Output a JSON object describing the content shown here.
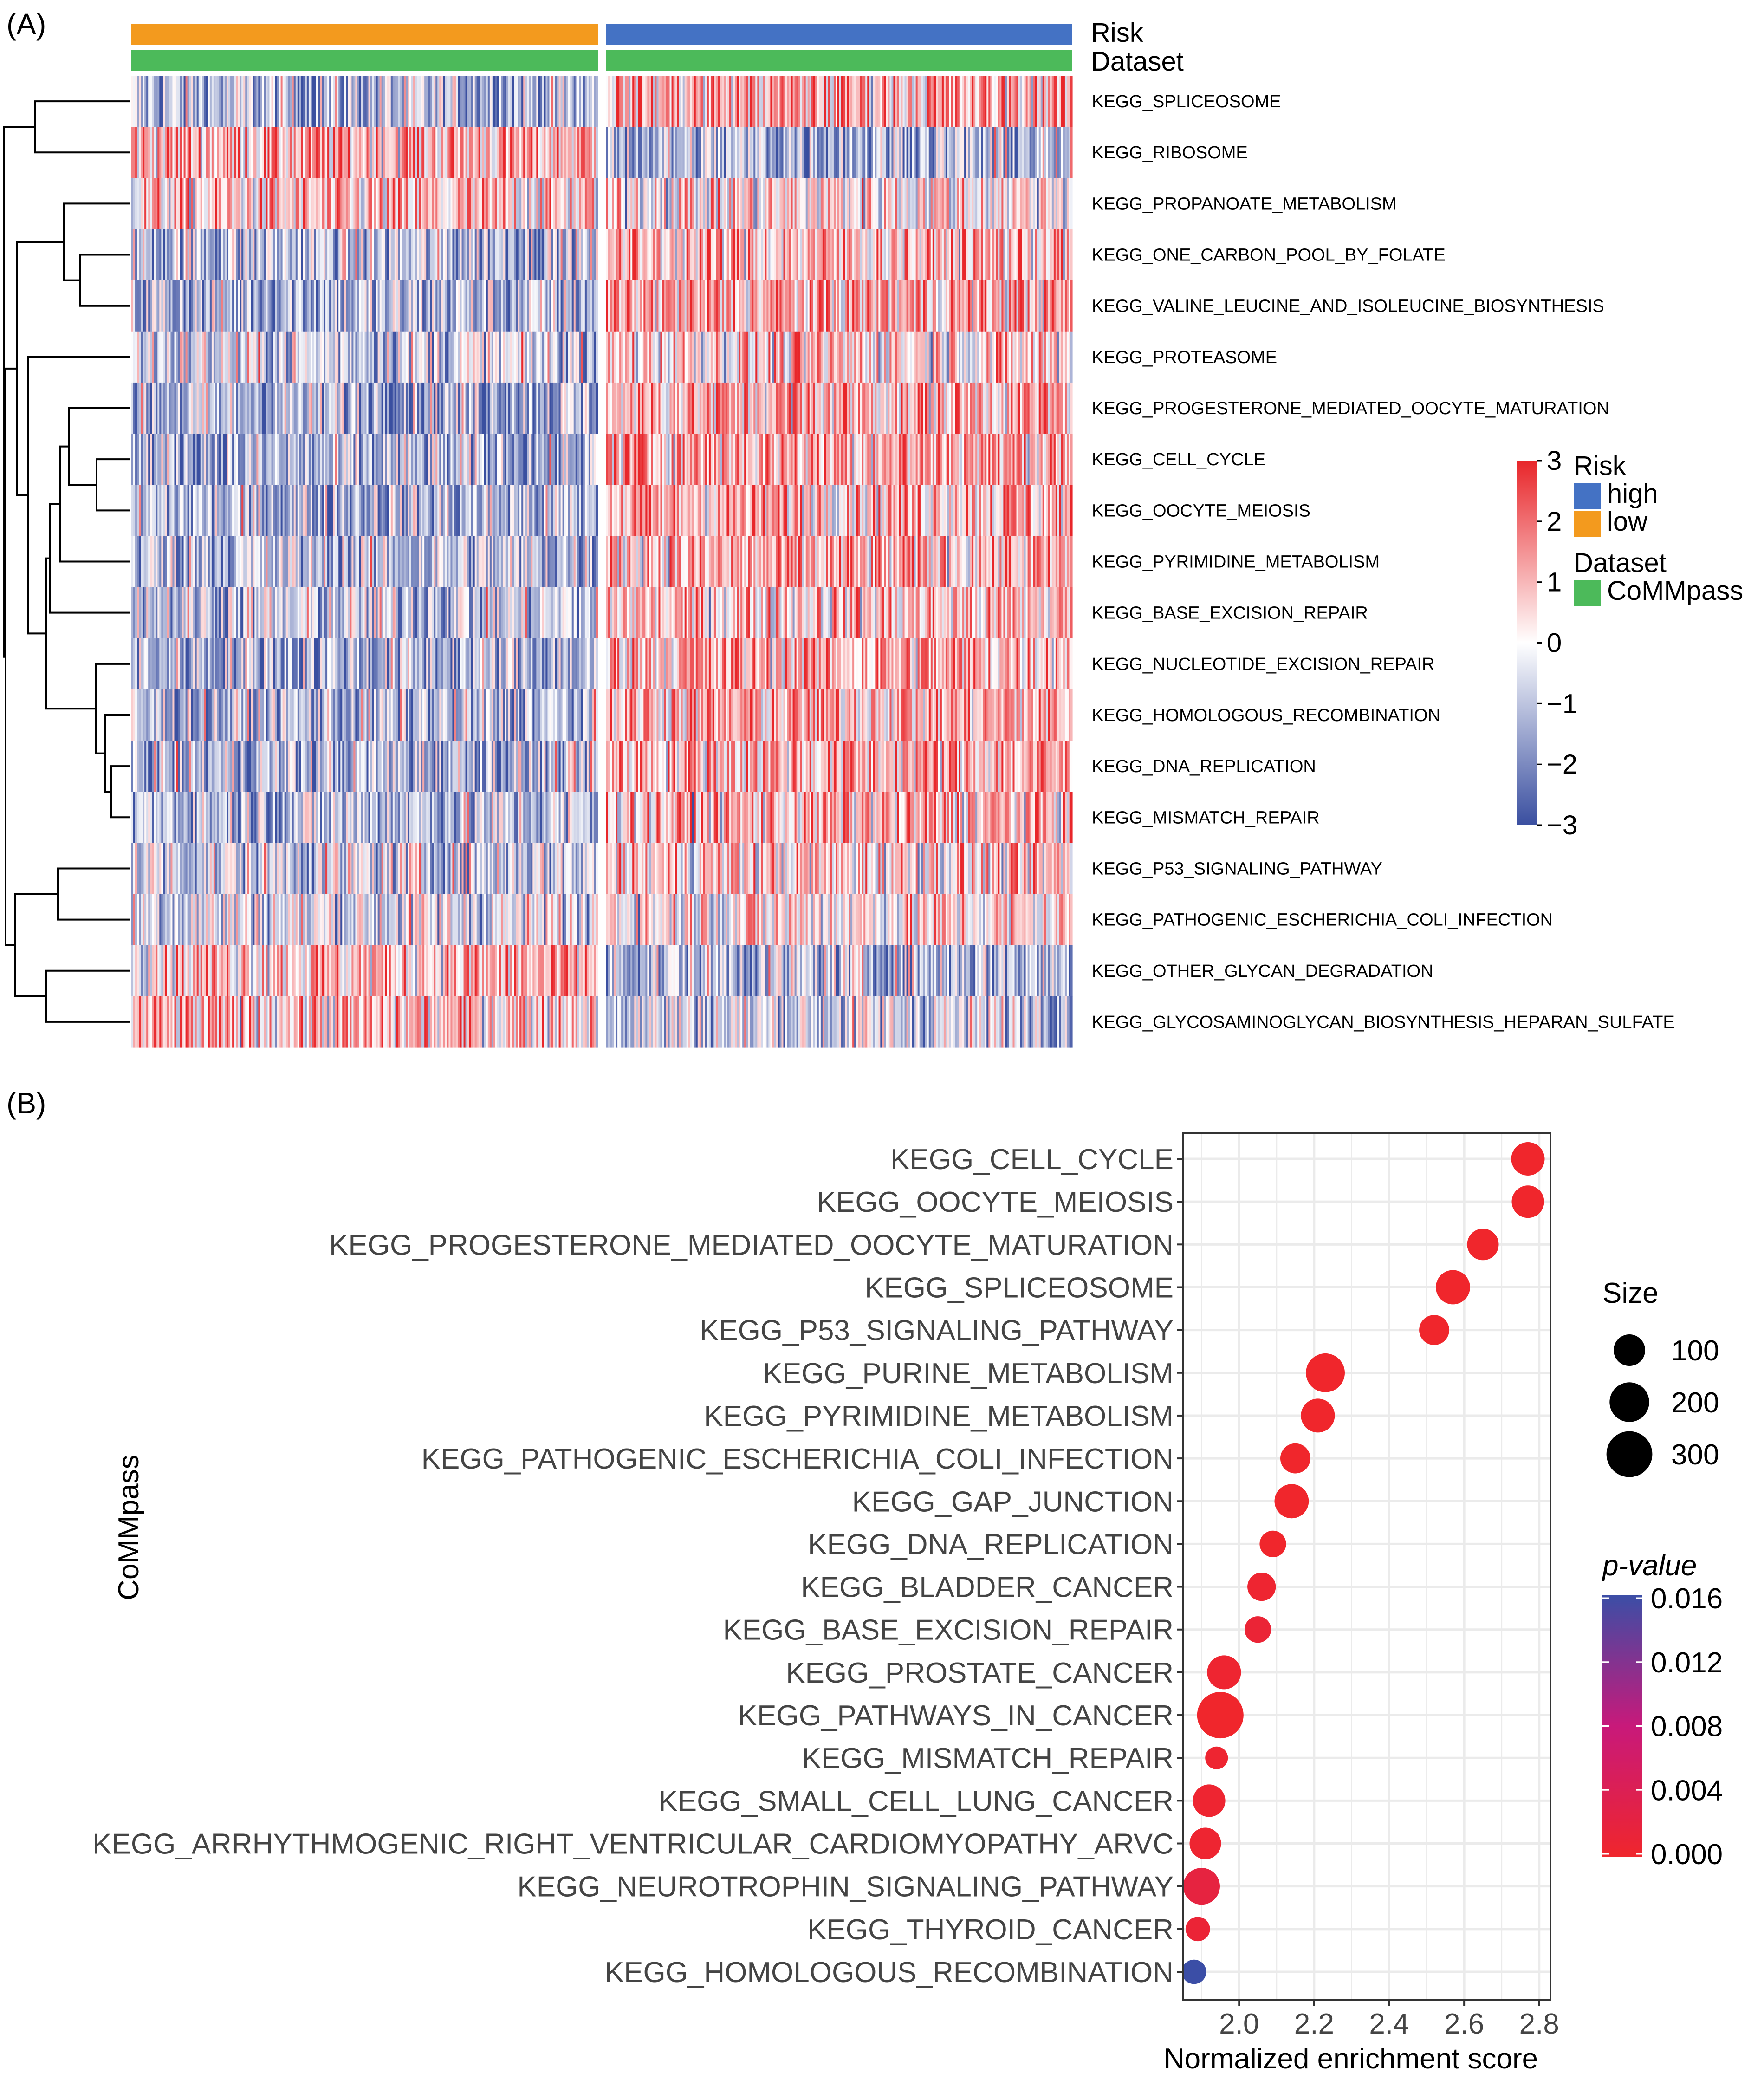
{
  "panel_a_label": "(A)",
  "panel_b_label": "(B)",
  "chart_data": [
    {
      "type": "heatmap",
      "title": "",
      "column_annotations": [
        {
          "name": "Risk",
          "groups": [
            "low",
            "high"
          ]
        },
        {
          "name": "Dataset",
          "groups": [
            "CoMMpass",
            "CoMMpass"
          ]
        }
      ],
      "rows": [
        "KEGG_SPLICEOSOME",
        "KEGG_RIBOSOME",
        "KEGG_PROPANOATE_METABOLISM",
        "KEGG_ONE_CARBON_POOL_BY_FOLATE",
        "KEGG_VALINE_LEUCINE_AND_ISOLEUCINE_BIOSYNTHESIS",
        "KEGG_PROTEASOME",
        "KEGG_PROGESTERONE_MEDIATED_OOCYTE_MATURATION",
        "KEGG_CELL_CYCLE",
        "KEGG_OOCYTE_MEIOSIS",
        "KEGG_PYRIMIDINE_METABOLISM",
        "KEGG_BASE_EXCISION_REPAIR",
        "KEGG_NUCLEOTIDE_EXCISION_REPAIR",
        "KEGG_HOMOLOGOUS_RECOMBINATION",
        "KEGG_DNA_REPLICATION",
        "KEGG_MISMATCH_REPAIR",
        "KEGG_P53_SIGNALING_PATHWAY",
        "KEGG_PATHOGENIC_ESCHERICHIA_COLI_INFECTION",
        "KEGG_OTHER_GLYCAN_DEGRADATION",
        "KEGG_GLYCOSAMINOGLYCAN_BIOSYNTHESIS_HEPARAN_SULFATE"
      ],
      "row_mean_low": [
        -0.6,
        0.6,
        0.3,
        -0.5,
        -0.6,
        -0.3,
        -0.6,
        -0.7,
        -0.6,
        -0.5,
        -0.4,
        -0.6,
        -0.6,
        -0.6,
        -0.5,
        -0.3,
        -0.2,
        0.5,
        0.4
      ],
      "row_mean_high": [
        0.6,
        -0.6,
        0.2,
        0.5,
        0.6,
        0.3,
        0.6,
        0.7,
        0.6,
        0.5,
        0.4,
        0.6,
        0.6,
        0.6,
        0.5,
        0.3,
        0.2,
        -0.5,
        -0.3
      ],
      "color_scale": {
        "min": -3,
        "max": 3,
        "ticks": [
          "3",
          "2",
          "1",
          "0",
          "−1",
          "−2",
          "−3"
        ],
        "low_color": "#3a4fa0",
        "mid_color": "#ffffff",
        "high_color": "#e8262a"
      },
      "legend": {
        "risk_title": "Risk",
        "risk_items": [
          {
            "label": "high",
            "color": "#4472c4"
          },
          {
            "label": "low",
            "color": "#f39a1e"
          }
        ],
        "dataset_title": "Dataset",
        "dataset_items": [
          {
            "label": "CoMMpass",
            "color": "#4cba5a"
          }
        ]
      }
    },
    {
      "type": "scatter",
      "title": "",
      "xlabel": "Normalized enrichment score",
      "ylabel": "CoMMpass",
      "xlim": [
        1.85,
        2.83
      ],
      "xticks": [
        "2.0",
        "2.2",
        "2.4",
        "2.6",
        "2.8"
      ],
      "categories": [
        "KEGG_CELL_CYCLE",
        "KEGG_OOCYTE_MEIOSIS",
        "KEGG_PROGESTERONE_MEDIATED_OOCYTE_MATURATION",
        "KEGG_SPLICEOSOME",
        "KEGG_P53_SIGNALING_PATHWAY",
        "KEGG_PURINE_METABOLISM",
        "KEGG_PYRIMIDINE_METABOLISM",
        "KEGG_PATHOGENIC_ESCHERICHIA_COLI_INFECTION",
        "KEGG_GAP_JUNCTION",
        "KEGG_DNA_REPLICATION",
        "KEGG_BLADDER_CANCER",
        "KEGG_BASE_EXCISION_REPAIR",
        "KEGG_PROSTATE_CANCER",
        "KEGG_PATHWAYS_IN_CANCER",
        "KEGG_MISMATCH_REPAIR",
        "KEGG_SMALL_CELL_LUNG_CANCER",
        "KEGG_ARRHYTHMOGENIC_RIGHT_VENTRICULAR_CARDIOMYOPATHY_ARVC",
        "KEGG_NEUROTROPHIN_SIGNALING_PATHWAY",
        "KEGG_THYROID_CANCER",
        "KEGG_HOMOLOGOUS_RECOMBINATION"
      ],
      "nes": [
        2.77,
        2.77,
        2.65,
        2.57,
        2.52,
        2.23,
        2.21,
        2.15,
        2.14,
        2.09,
        2.06,
        2.05,
        1.96,
        1.95,
        1.94,
        1.92,
        1.91,
        1.9,
        1.89,
        1.88
      ],
      "size": [
        120,
        110,
        100,
        130,
        85,
        190,
        125,
        85,
        130,
        55,
        70,
        55,
        125,
        310,
        30,
        110,
        100,
        160,
        40,
        40
      ],
      "pvalue": [
        0.0,
        0.0,
        0.0,
        0.0,
        0.0,
        0.0,
        0.0,
        0.0,
        0.0,
        0.0,
        0.0005,
        0.001,
        0.0005,
        0.0,
        0.0005,
        0.0005,
        0.0005,
        0.002,
        0.001,
        0.016
      ],
      "size_legend": {
        "title": "Size",
        "values": [
          100,
          200,
          300
        ]
      },
      "color_legend": {
        "title": "p-value",
        "ticks": [
          "0.016",
          "0.012",
          "0.008",
          "0.004",
          "0.000"
        ],
        "range": [
          0.0,
          0.016
        ],
        "low_color": "#f0262c",
        "mid_color": "#c8197a",
        "high_color": "#3b4ea6"
      }
    }
  ]
}
